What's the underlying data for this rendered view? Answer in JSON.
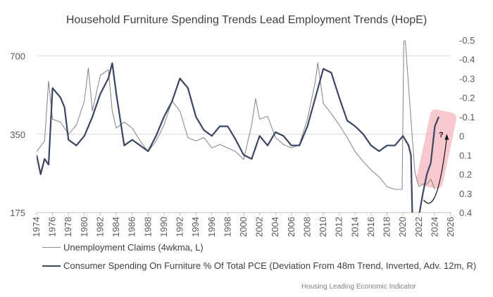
{
  "chart_data": {
    "type": "line",
    "title": "Household Furniture Spending Trends Lead Employment Trends (HopE)",
    "x_ticks": [
      "1974",
      "1976",
      "1978",
      "1980",
      "1982",
      "1984",
      "1986",
      "1988",
      "1990",
      "1992",
      "1994",
      "1996",
      "1998",
      "2000",
      "2002",
      "2004",
      "2006",
      "2008",
      "2010",
      "2012",
      "2014",
      "2016",
      "2018",
      "2020",
      "2022",
      "2024",
      "2026"
    ],
    "xlim": [
      1974,
      2026
    ],
    "y_left": {
      "ticks": [
        "700",
        "350",
        "175"
      ],
      "range": [
        175,
        806
      ],
      "scale": "log"
    },
    "y_right": {
      "ticks": [
        "-0.5",
        "-0.4",
        "-0.3",
        "-0.2",
        "-0.1",
        "0",
        "0.1",
        "0.2",
        "0.3",
        "0.4"
      ],
      "range": [
        -0.5,
        0.4
      ],
      "inverted": true
    },
    "grid": "horizontal",
    "legend_position": "bottom",
    "series": [
      {
        "name": "Unemployment Claims (4wkma, L)",
        "axis": "left",
        "color": "#8c8c8c",
        "x": [
          1974,
          1975,
          1975.5,
          1976,
          1977,
          1978,
          1979,
          1980,
          1980.5,
          1981,
          1982,
          1983,
          1983.5,
          1984,
          1985,
          1986,
          1987,
          1988,
          1989,
          1990,
          1991,
          1992,
          1993,
          1994,
          1995,
          1996,
          1997,
          1998,
          1999,
          2000,
          2001,
          2001.5,
          2002,
          2003,
          2004,
          2005,
          2006,
          2007,
          2008,
          2009,
          2009.3,
          2010,
          2011,
          2012,
          2013,
          2014,
          2015,
          2016,
          2017,
          2018,
          2019,
          2019.9,
          2020.1,
          2020.3,
          2021,
          2021.5,
          2022,
          2022.5,
          2023,
          2023.5,
          2024
        ],
        "y": [
          300,
          330,
          560,
          400,
          390,
          350,
          380,
          470,
          630,
          430,
          590,
          620,
          430,
          370,
          390,
          370,
          330,
          300,
          330,
          380,
          470,
          430,
          340,
          330,
          340,
          310,
          320,
          310,
          300,
          280,
          380,
          480,
          400,
          410,
          340,
          320,
          310,
          320,
          400,
          560,
          660,
          460,
          420,
          380,
          340,
          300,
          275,
          255,
          240,
          220,
          215,
          215,
          800,
          800,
          400,
          250,
          220,
          225,
          225,
          235,
          215
        ]
      },
      {
        "name": "Consumer Spending On Furniture % Of Total PCE (Deviation From 48m Trend, Inverted, Adv. 12m, R)",
        "axis": "right",
        "color": "#3a4660",
        "x": [
          1974,
          1974.5,
          1975,
          1975.5,
          1976,
          1977,
          1977.5,
          1978,
          1979,
          1980,
          1981,
          1982,
          1983,
          1983.5,
          1984,
          1985,
          1986,
          1987,
          1988,
          1989,
          1990,
          1991,
          1992,
          1993,
          1994,
          1995,
          1996,
          1997,
          1998,
          1999,
          2000,
          2001,
          2002,
          2003,
          2004,
          2005,
          2006,
          2007,
          2008,
          2009,
          2010,
          2011,
          2012,
          2013,
          2014,
          2015,
          2016,
          2017,
          2018,
          2019,
          2020,
          2020.7,
          2021,
          2021.2,
          2021.6,
          2022,
          2022.5,
          2023,
          2023.5,
          2024,
          2024.5
        ],
        "y": [
          0.1,
          0.2,
          0.12,
          0.15,
          -0.25,
          -0.2,
          -0.15,
          0.02,
          0.05,
          0.0,
          -0.1,
          -0.22,
          -0.3,
          -0.38,
          -0.22,
          0.05,
          0.02,
          0.05,
          0.08,
          0.0,
          -0.1,
          -0.18,
          -0.3,
          -0.25,
          -0.1,
          -0.03,
          0.0,
          -0.05,
          -0.05,
          0.02,
          0.1,
          0.12,
          0.0,
          0.05,
          -0.02,
          0.0,
          0.05,
          0.05,
          -0.05,
          -0.2,
          -0.35,
          -0.33,
          -0.2,
          -0.08,
          -0.05,
          -0.01,
          0.05,
          0.08,
          0.05,
          0.05,
          0.0,
          0.05,
          0.1,
          0.45,
          0.45,
          0.42,
          0.3,
          0.2,
          0.14,
          -0.05,
          -0.1
        ]
      }
    ],
    "annotations": {
      "highlight_color": "#f4b6bd",
      "question_mark": "?"
    }
  },
  "footer": "Housing Leading Economic Indicator"
}
